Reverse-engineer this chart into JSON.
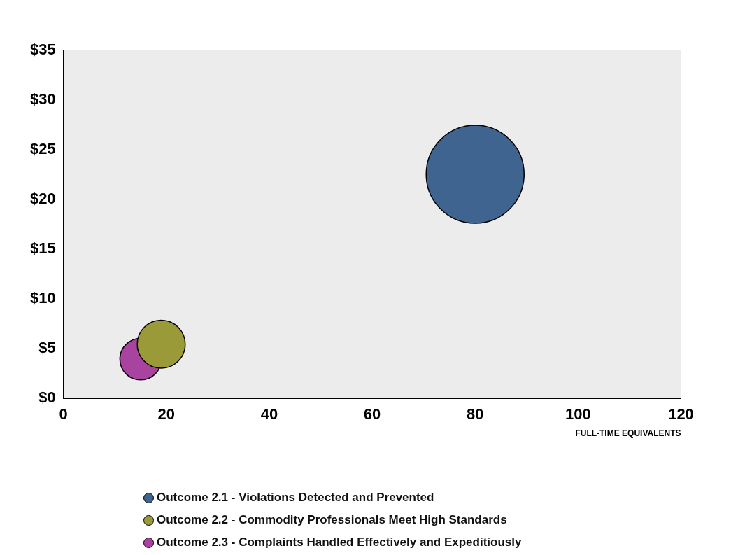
{
  "chart_data": {
    "type": "bubble",
    "xlabel": "FULL-TIME EQUIVALENTS",
    "xlim": [
      0,
      120
    ],
    "xticks": [
      0,
      20,
      40,
      60,
      80,
      100,
      120
    ],
    "ylim": [
      0,
      35
    ],
    "yticks": [
      {
        "value": 0,
        "label": "$0"
      },
      {
        "value": 5,
        "label": "$5"
      },
      {
        "value": 10,
        "label": "$10"
      },
      {
        "value": 15,
        "label": "$15"
      },
      {
        "value": 20,
        "label": "$20"
      },
      {
        "value": 25,
        "label": "$25"
      },
      {
        "value": 30,
        "label": "$30"
      },
      {
        "value": 35,
        "label": "$35"
      }
    ],
    "grid": false,
    "legend": "bottom",
    "series": [
      {
        "name": "Outcome 2.1 - Violations Detected and Prevented",
        "color": "#3f6490",
        "x": [
          80
        ],
        "values": [
          22.5
        ],
        "sizes": [
          1
        ]
      },
      {
        "name": "Outcome 2.2 - Commodity Professionals Meet High Standards",
        "color": "#9a9a38",
        "x": [
          19
        ],
        "values": [
          5.4
        ],
        "sizes": [
          0.24
        ]
      },
      {
        "name": "Outcome 2.3 - Complaints Handled Effectively and Expeditiously",
        "color": "#a8449f",
        "x": [
          15
        ],
        "values": [
          3.9
        ],
        "sizes": [
          0.18
        ]
      }
    ]
  }
}
